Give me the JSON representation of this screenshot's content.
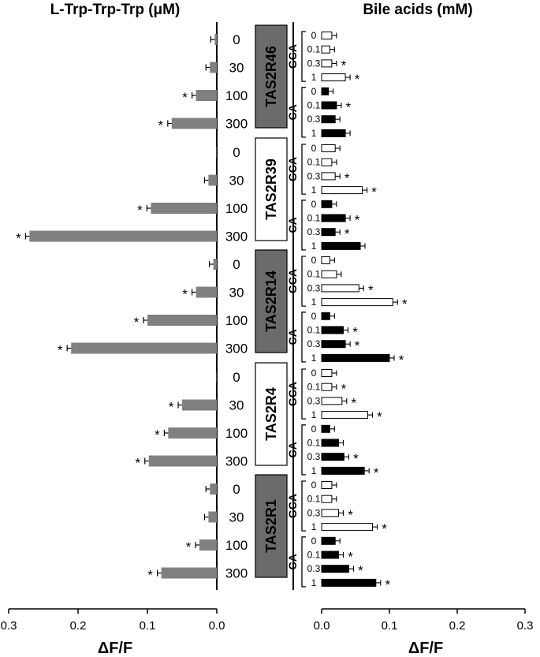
{
  "chart_data": [
    {
      "type": "bar",
      "orientation": "horizontal",
      "title": "L-Trp-Trp-Trp (μM)",
      "xlabel": "ΔF/F",
      "xlim": [
        0.3,
        0.0
      ],
      "xticks": [
        "0.3",
        "0.2",
        "0.1",
        "0.0"
      ],
      "categories": [
        "0",
        "30",
        "100",
        "300"
      ],
      "bar_color": "#808080",
      "groups": [
        {
          "receptor": "TAS2R46",
          "values": [
            0.003,
            0.01,
            0.03,
            0.065
          ],
          "significant": [
            false,
            false,
            true,
            true
          ]
        },
        {
          "receptor": "TAS2R39",
          "values": [
            0.0,
            0.012,
            0.095,
            0.27
          ],
          "significant": [
            false,
            false,
            true,
            true
          ]
        },
        {
          "receptor": "TAS2R14",
          "values": [
            0.005,
            0.03,
            0.1,
            0.21
          ],
          "significant": [
            false,
            true,
            true,
            true
          ]
        },
        {
          "receptor": "TAS2R4",
          "values": [
            0.0,
            0.05,
            0.07,
            0.098
          ],
          "significant": [
            false,
            true,
            true,
            true
          ]
        },
        {
          "receptor": "TAS2R1",
          "values": [
            0.01,
            0.012,
            0.025,
            0.08
          ],
          "significant": [
            false,
            false,
            true,
            true
          ]
        }
      ]
    },
    {
      "type": "bar",
      "orientation": "horizontal",
      "title": "Bile acids (mM)",
      "xlabel": "ΔF/F",
      "xlim": [
        0.0,
        0.3
      ],
      "xticks": [
        "0.0",
        "0.1",
        "0.2",
        "0.3"
      ],
      "concentrations": [
        "0",
        "0.1",
        "0.3",
        "1"
      ],
      "acids": [
        {
          "name": "GCA",
          "color": "#ffffff"
        },
        {
          "name": "CA",
          "color": "#000000"
        }
      ],
      "groups": [
        {
          "receptor": "TAS2R46",
          "GCA": {
            "values": [
              0.015,
              0.012,
              0.015,
              0.035
            ],
            "significant": [
              false,
              false,
              true,
              true
            ]
          },
          "CA": {
            "values": [
              0.01,
              0.022,
              0.02,
              0.035
            ],
            "significant": [
              false,
              true,
              false,
              false
            ]
          }
        },
        {
          "receptor": "TAS2R39",
          "GCA": {
            "values": [
              0.02,
              0.015,
              0.02,
              0.06
            ],
            "significant": [
              false,
              false,
              true,
              true
            ]
          },
          "CA": {
            "values": [
              0.015,
              0.035,
              0.02,
              0.057
            ],
            "significant": [
              false,
              true,
              true,
              false
            ]
          }
        },
        {
          "receptor": "TAS2R14",
          "GCA": {
            "values": [
              0.012,
              0.022,
              0.055,
              0.105
            ],
            "significant": [
              false,
              false,
              true,
              true
            ]
          },
          "CA": {
            "values": [
              0.012,
              0.032,
              0.035,
              0.1
            ],
            "significant": [
              false,
              true,
              true,
              true
            ]
          }
        },
        {
          "receptor": "TAS2R4",
          "GCA": {
            "values": [
              0.015,
              0.015,
              0.03,
              0.068
            ],
            "significant": [
              false,
              true,
              true,
              true
            ]
          },
          "CA": {
            "values": [
              0.012,
              0.025,
              0.033,
              0.063
            ],
            "significant": [
              false,
              false,
              true,
              true
            ]
          }
        },
        {
          "receptor": "TAS2R1",
          "GCA": {
            "values": [
              0.015,
              0.015,
              0.025,
              0.075
            ],
            "significant": [
              false,
              false,
              true,
              true
            ]
          },
          "CA": {
            "values": [
              0.02,
              0.025,
              0.04,
              0.08
            ],
            "significant": [
              false,
              true,
              true,
              true
            ]
          }
        }
      ]
    }
  ],
  "receptor_box_style": {
    "TAS2R46": "filled",
    "TAS2R39": "outline",
    "TAS2R14": "filled",
    "TAS2R4": "outline",
    "TAS2R1": "filled"
  },
  "significance_marker": "*",
  "colors": {
    "receptor_fill": "#6b6b6b",
    "axis": "#000000"
  }
}
